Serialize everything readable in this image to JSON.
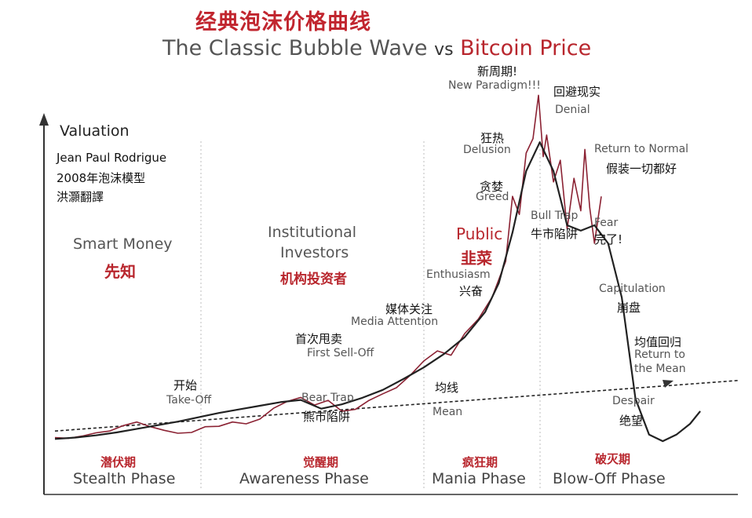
{
  "title_zh": "经典泡沫价格曲线",
  "title_en_part1": "The Classic Bubble Wave",
  "title_en_vs": "vs",
  "title_en_part2": "Bitcoin Price",
  "ylabel": "Valuation",
  "credit": [
    "Jean Paul Rodrigue",
    "2008年泡沫模型",
    "洪灝翻譯"
  ],
  "groups": [
    {
      "en": "Smart Money",
      "zh": "先知"
    },
    {
      "en_line1": "Institutional",
      "en_line2": "Investors",
      "zh": "机构投资者"
    },
    {
      "en": "Public",
      "zh": "韭菜"
    }
  ],
  "phases": [
    {
      "zh": "潜伏期",
      "en": "Stealth Phase"
    },
    {
      "zh": "觉醒期",
      "en": "Awareness Phase"
    },
    {
      "zh": "疯狂期",
      "en": "Mania Phase"
    },
    {
      "zh": "破灭期",
      "en": "Blow-Off Phase"
    }
  ],
  "annotations": {
    "takeoff": {
      "zh": "开始",
      "en": "Take-Off"
    },
    "first_selloff": {
      "zh": "首次甩卖",
      "en": "First Sell-Off"
    },
    "bear_trap": {
      "en": "Bear Trap",
      "zh": "熊市陷阱"
    },
    "media": {
      "zh": "媒体关注",
      "en": "Media Attention"
    },
    "mean": {
      "zh": "均线",
      "en": "Mean"
    },
    "enthusiasm": {
      "en": "Enthusiasm",
      "zh": "兴奋"
    },
    "greed": {
      "zh": "贪婪",
      "en": "Greed"
    },
    "delusion": {
      "zh": "狂热",
      "en": "Delusion"
    },
    "new_paradigm": {
      "zh": "新周期!",
      "en": "New Paradigm!!!"
    },
    "denial": {
      "zh": "回避现实",
      "en": "Denial"
    },
    "return_normal": {
      "en": "Return to Normal",
      "zh": "假装一切都好"
    },
    "bull_trap": {
      "en": "Bull Trap",
      "zh": "牛市陷阱"
    },
    "fear": {
      "en": "Fear",
      "zh": "完了!"
    },
    "capitulation": {
      "en": "Capitulation",
      "zh": "崩盘"
    },
    "return_mean": {
      "zh": "均值回归",
      "en_line1": "Return to",
      "en_line2": "the Mean"
    },
    "despair": {
      "en": "Despair",
      "zh": "绝望"
    }
  },
  "colors": {
    "accent_red": "#b8262d",
    "curve": "#222222",
    "bitcoin": "#8b2233",
    "divider": "#cfcfcf"
  },
  "chart_data": {
    "type": "line",
    "title": "The Classic Bubble Wave vs Bitcoin Price",
    "ylabel": "Valuation",
    "grid": false,
    "phases": [
      "Stealth Phase",
      "Awareness Phase",
      "Mania Phase",
      "Blow-Off Phase"
    ],
    "series": [
      {
        "name": "Classic Bubble Wave",
        "x": [
          0,
          3,
          6,
          9,
          12,
          15,
          18,
          21,
          24,
          27,
          30,
          33,
          36,
          39,
          42,
          45,
          48,
          51,
          54,
          57,
          60,
          63,
          65,
          67,
          69,
          71,
          73,
          75,
          77,
          79,
          81,
          83,
          85,
          87,
          89,
          91,
          93,
          94.5
        ],
        "y": [
          0.8,
          1.2,
          1.8,
          2.6,
          3.6,
          4.6,
          5.6,
          6.8,
          8.0,
          9.0,
          10.0,
          11.0,
          11.6,
          9.2,
          10.4,
          12.2,
          14.4,
          17.4,
          20.6,
          24.4,
          29.0,
          36.0,
          44.0,
          58.0,
          75.0,
          83.0,
          75.0,
          60.0,
          58.5,
          60.0,
          55.0,
          40.0,
          12.0,
          2.0,
          0.2,
          2.0,
          5.0,
          8.5
        ]
      },
      {
        "name": "Bitcoin Price",
        "x": [
          0,
          2,
          4,
          6,
          8,
          10,
          12,
          14,
          16,
          18,
          20,
          22,
          24,
          26,
          28,
          30,
          32,
          34,
          36,
          38,
          40,
          42,
          44,
          46,
          48,
          50,
          52,
          54,
          56,
          58,
          60,
          62,
          63,
          64,
          65,
          66,
          67,
          68,
          69,
          70,
          70.8,
          71.5,
          72,
          73,
          74,
          75,
          76,
          77,
          77.6,
          78.3,
          79,
          80
        ],
        "y": [
          1.2,
          1.0,
          1.6,
          2.5,
          3.0,
          4.5,
          5.5,
          4.2,
          3.2,
          2.4,
          2.6,
          4.2,
          4.3,
          5.5,
          5.0,
          6.3,
          9.3,
          11.2,
          12.3,
          10.2,
          11.5,
          8.5,
          9.0,
          11.5,
          13.3,
          15.0,
          18.4,
          22.4,
          25.2,
          24.0,
          30.0,
          34.0,
          37.0,
          40.0,
          45.0,
          50.0,
          68.0,
          63.0,
          80.0,
          84.0,
          96.0,
          79.0,
          85.0,
          72.0,
          78.0,
          59.0,
          73.0,
          64.0,
          81.0,
          65.0,
          55.0,
          68.0
        ]
      },
      {
        "name": "Mean",
        "x": [
          0,
          100
        ],
        "y": [
          3.0,
          17.0
        ]
      }
    ]
  }
}
